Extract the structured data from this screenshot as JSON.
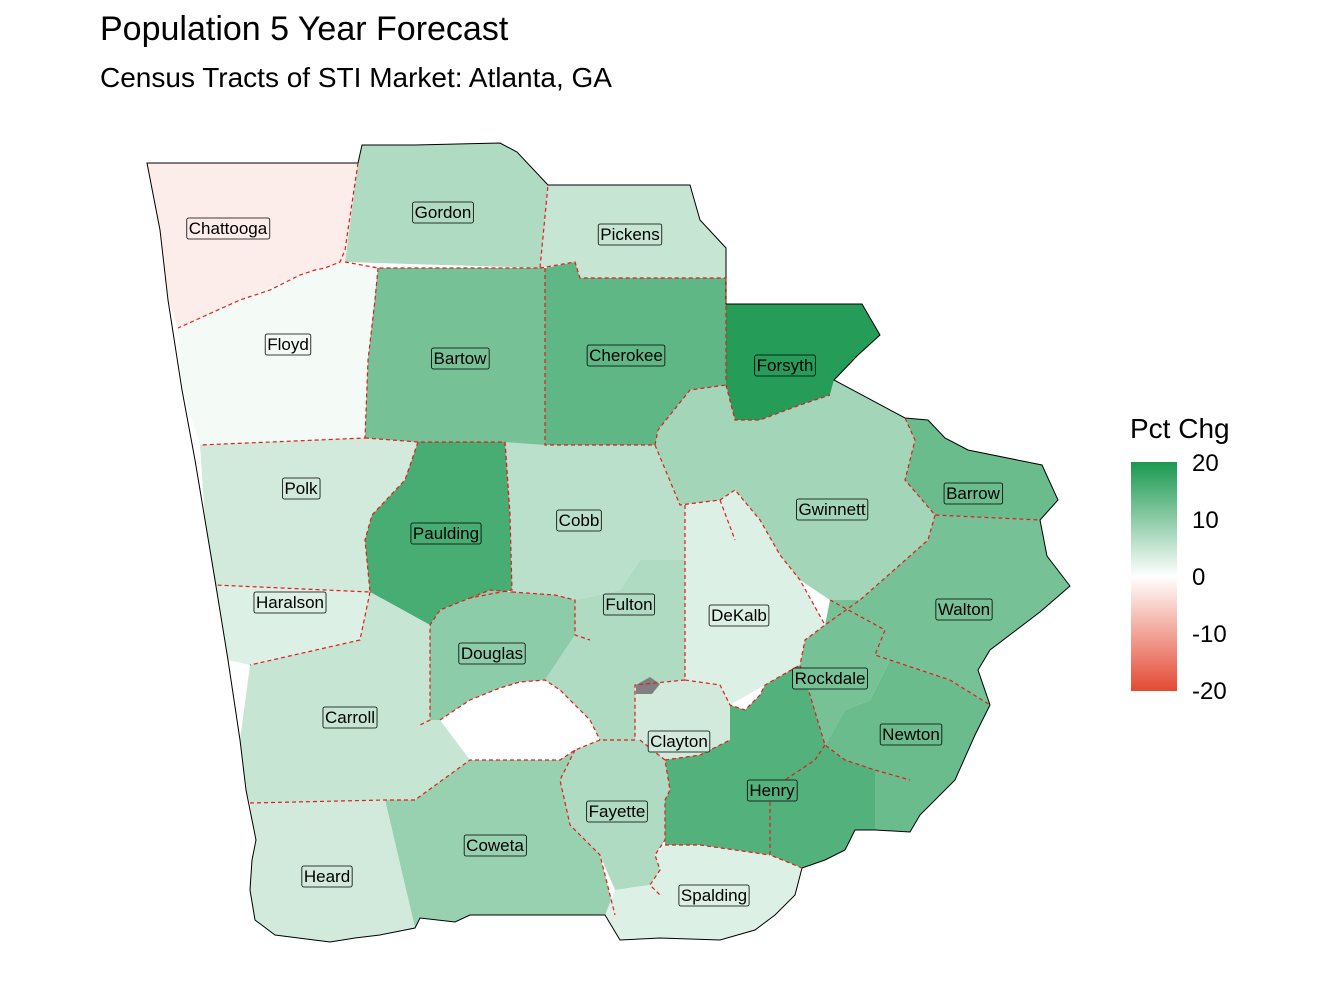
{
  "title": "Population 5 Year Forecast",
  "subtitle": "Census Tracts of STI Market: Atlanta, GA",
  "legend": {
    "title": "Pct Chg",
    "ticks": [
      "20",
      "10",
      "0",
      "-10",
      "-20"
    ],
    "scale": [
      -20,
      20
    ],
    "colors": {
      "high": "#1a9850",
      "mid": "#ffffff",
      "low": "#e34a33",
      "na": "#808080"
    }
  },
  "counties": [
    {
      "name": "Chattooga",
      "shade": -2
    },
    {
      "name": "Gordon",
      "shade": 7
    },
    {
      "name": "Pickens",
      "shade": 5
    },
    {
      "name": "Floyd",
      "shade": 1
    },
    {
      "name": "Bartow",
      "shade": 12
    },
    {
      "name": "Cherokee",
      "shade": 14
    },
    {
      "name": "Forsyth",
      "shade": 19
    },
    {
      "name": "Polk",
      "shade": 4
    },
    {
      "name": "Paulding",
      "shade": 16
    },
    {
      "name": "Cobb",
      "shade": 6
    },
    {
      "name": "Gwinnett",
      "shade": 8
    },
    {
      "name": "Barrow",
      "shade": 13
    },
    {
      "name": "Haralson",
      "shade": 3
    },
    {
      "name": "Fulton",
      "shade": 7
    },
    {
      "name": "DeKalb",
      "shade": 3
    },
    {
      "name": "Walton",
      "shade": 12
    },
    {
      "name": "Douglas",
      "shade": 10
    },
    {
      "name": "Rockdale",
      "shade": 12
    },
    {
      "name": "Carroll",
      "shade": 5
    },
    {
      "name": "Clayton",
      "shade": 4
    },
    {
      "name": "Newton",
      "shade": 13
    },
    {
      "name": "Henry",
      "shade": 15
    },
    {
      "name": "Fayette",
      "shade": 7
    },
    {
      "name": "Coweta",
      "shade": 9
    },
    {
      "name": "Heard",
      "shade": 4
    },
    {
      "name": "Spalding",
      "shade": 3
    }
  ]
}
